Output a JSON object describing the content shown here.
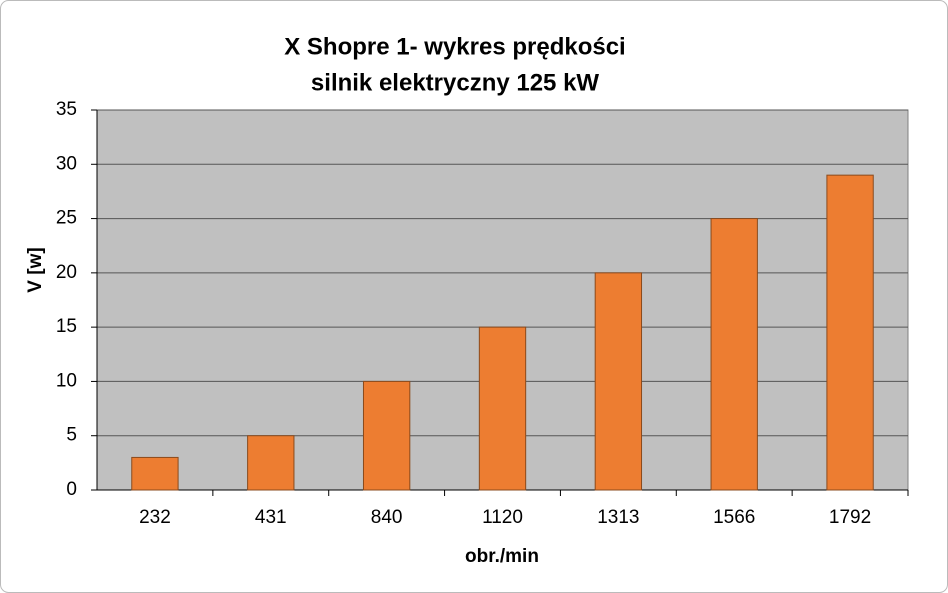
{
  "chart_data": {
    "type": "bar",
    "title": "X Shopre 1- wykres prędkości",
    "subtitle": "silnik elektryczny 125 kW",
    "x_label": "obr./min",
    "y_label": "V [w]",
    "categories": [
      "232",
      "431",
      "840",
      "1120",
      "1313",
      "1566",
      "1792"
    ],
    "values": [
      3,
      5,
      10,
      15,
      20,
      25,
      29
    ],
    "color": "#ed7d31",
    "ylim": [
      0,
      35
    ],
    "yticks": [
      0,
      5,
      10,
      15,
      20,
      25,
      30,
      35
    ],
    "grid": true
  }
}
